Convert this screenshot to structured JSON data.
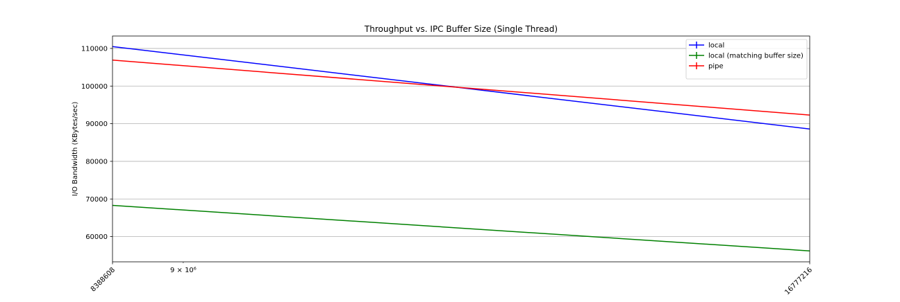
{
  "chart_data": {
    "type": "line",
    "title": "Throughput vs. IPC Buffer Size (Single Thread)",
    "xlabel": "",
    "ylabel": "I/O Bandwidth (KBytes/sec)",
    "x_scale": "log",
    "x": [
      8388608,
      16777216
    ],
    "x_tick_labels": [
      "8388608",
      "16777216"
    ],
    "x_minor_tick_label": "9 × 10⁶",
    "x_minor_tick_value": 9000000,
    "xlim": [
      8388608,
      16777216
    ],
    "ylim": [
      53300,
      113300
    ],
    "y_ticks": [
      60000,
      70000,
      80000,
      90000,
      100000,
      110000
    ],
    "grid": "horizontal",
    "legend_position": "top-right",
    "series": [
      {
        "name": "local",
        "color": "#0000ff",
        "values": [
          110500,
          88600
        ]
      },
      {
        "name": "local (matching buffer size)",
        "color": "#008000",
        "values": [
          68300,
          56200
        ]
      },
      {
        "name": "pipe",
        "color": "#ff0000",
        "values": [
          106900,
          92300
        ]
      }
    ]
  }
}
